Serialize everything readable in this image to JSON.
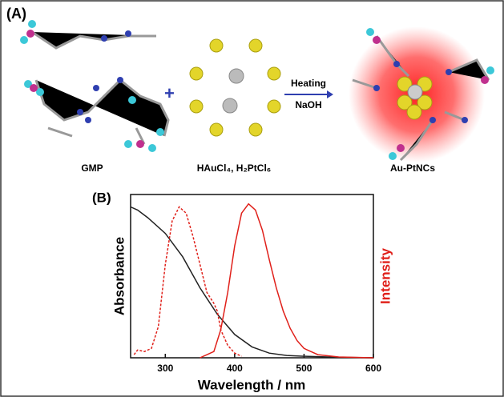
{
  "panel_a": {
    "label": "(A)",
    "molecule_label": "GMP",
    "precursor_label": "HAuCl₄, H₂PtCl₆",
    "arrow_top": "Heating",
    "arrow_bottom": "NaOH",
    "product_label": "Au-PtNCs"
  },
  "chart_data": {
    "type": "line",
    "panel_label": "(B)",
    "x_label": "Wavelength / nm",
    "y_label": "Absorbance",
    "y2_label": "Intensity",
    "xlim": [
      250,
      600
    ],
    "xticks": [
      300,
      400,
      500,
      600
    ],
    "ylim": [
      0,
      1.05
    ],
    "series": [
      {
        "color": "#222222",
        "dash": false,
        "x": [
          250,
          260,
          275,
          300,
          325,
          350,
          375,
          400,
          425,
          450,
          475,
          500,
          550,
          600
        ],
        "values": [
          0.97,
          0.95,
          0.9,
          0.8,
          0.65,
          0.45,
          0.28,
          0.15,
          0.07,
          0.03,
          0.015,
          0.01,
          0.003,
          0
        ]
      },
      {
        "color": "#e0201a",
        "dash": true,
        "x": [
          255,
          260,
          270,
          280,
          290,
          300,
          310,
          320,
          330,
          340,
          350,
          360,
          370,
          375,
          380,
          390,
          400,
          410
        ],
        "values": [
          0.02,
          0.05,
          0.04,
          0.06,
          0.2,
          0.6,
          0.88,
          0.97,
          0.93,
          0.78,
          0.6,
          0.42,
          0.35,
          0.3,
          0.18,
          0.08,
          0.03,
          0.01
        ]
      },
      {
        "color": "#e0201a",
        "dash": false,
        "x": [
          350,
          370,
          380,
          390,
          400,
          410,
          420,
          430,
          440,
          450,
          460,
          470,
          480,
          490,
          500,
          520,
          550,
          600
        ],
        "values": [
          0,
          0.04,
          0.18,
          0.42,
          0.72,
          0.93,
          0.99,
          0.95,
          0.82,
          0.63,
          0.45,
          0.3,
          0.19,
          0.11,
          0.06,
          0.02,
          0.005,
          0
        ]
      }
    ]
  }
}
